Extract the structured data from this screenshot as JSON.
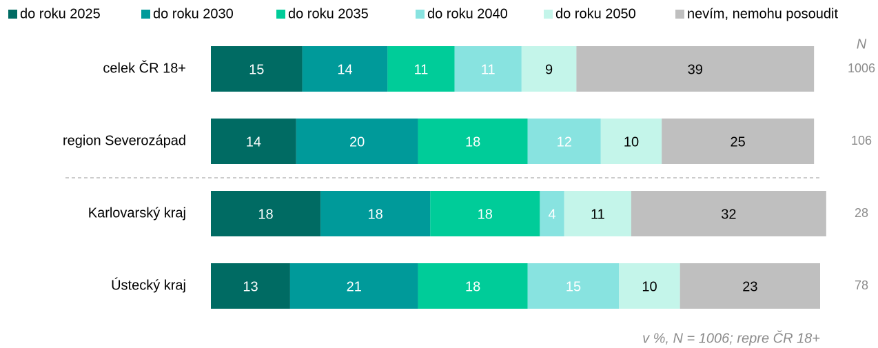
{
  "chart_data": {
    "type": "stacked_barh",
    "categories": [
      "celek ČR 18+",
      "region Severozápad",
      "Karlovarský kraj",
      "Ústecký kraj"
    ],
    "series": [
      {
        "name": "do roku 2025",
        "color": "#006b63",
        "label_color": "#ffffff",
        "values": [
          15,
          14,
          18,
          13
        ]
      },
      {
        "name": "do roku 2030",
        "color": "#009a9a",
        "label_color": "#ffffff",
        "values": [
          14,
          20,
          18,
          21
        ]
      },
      {
        "name": "do roku 2035",
        "color": "#00cc99",
        "label_color": "#ffffff",
        "values": [
          11,
          18,
          18,
          18
        ]
      },
      {
        "name": "do roku 2040",
        "color": "#88e3e0",
        "label_color": "#ffffff",
        "values": [
          11,
          12,
          4,
          15
        ]
      },
      {
        "name": "do roku 2050",
        "color": "#c4f5ea",
        "label_color": "#000000",
        "values": [
          9,
          10,
          11,
          10
        ]
      },
      {
        "name": "nevím, nemohu posoudit",
        "color": "#bfbfbf",
        "label_color": "#000000",
        "values": [
          39,
          25,
          32,
          23
        ]
      }
    ],
    "xlim": [
      0,
      100
    ],
    "n_header": "N",
    "n_values": [
      1006,
      106,
      28,
      78
    ],
    "note": "v %, N = 1006; repre ČR 18+"
  }
}
